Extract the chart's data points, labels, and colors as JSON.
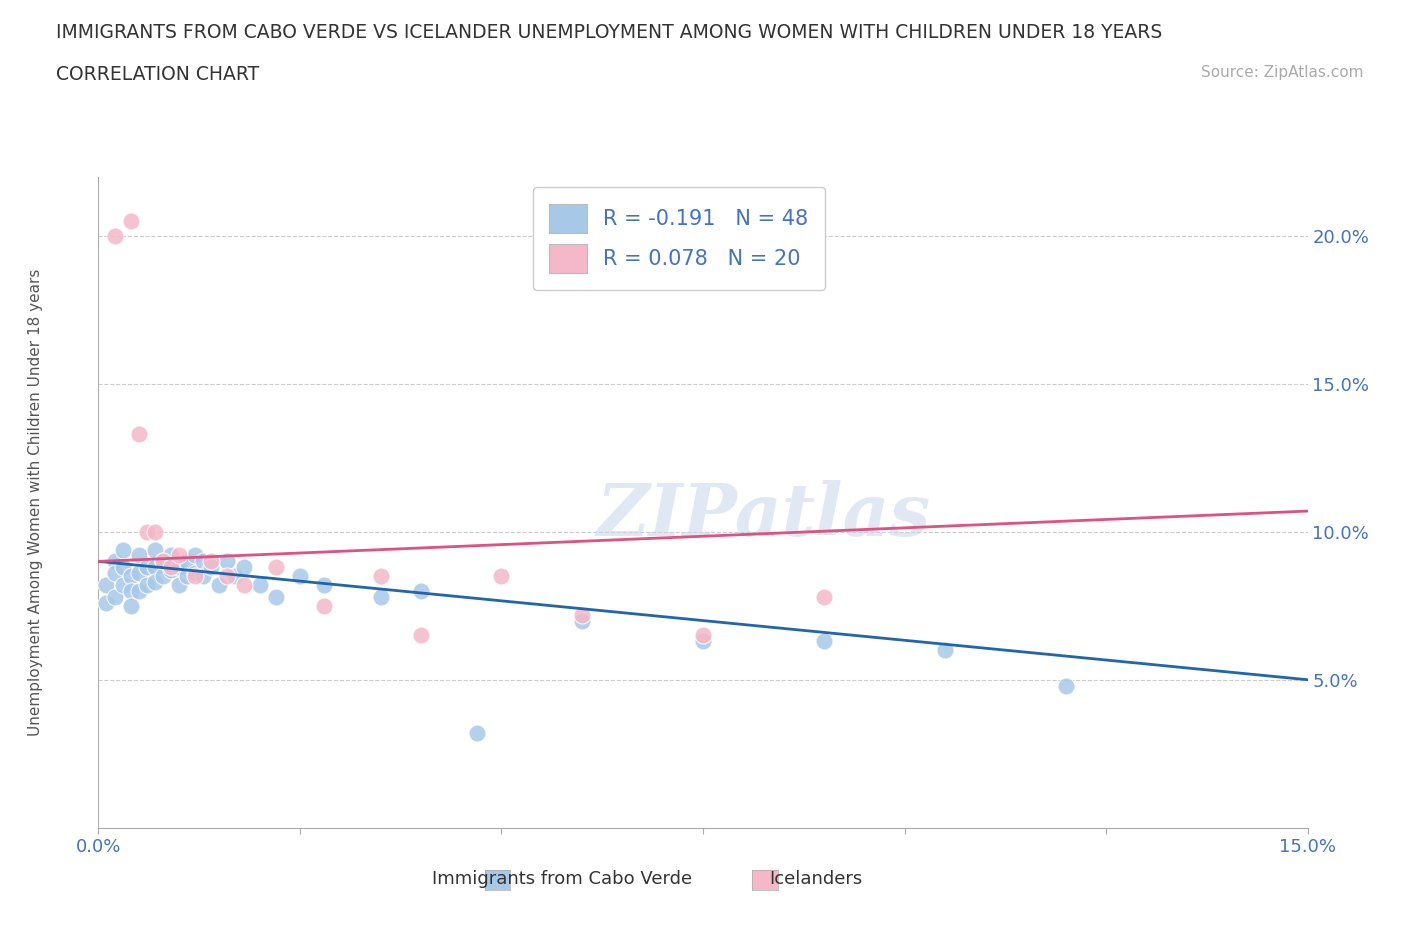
{
  "title": "IMMIGRANTS FROM CABO VERDE VS ICELANDER UNEMPLOYMENT AMONG WOMEN WITH CHILDREN UNDER 18 YEARS",
  "subtitle": "CORRELATION CHART",
  "source": "Source: ZipAtlas.com",
  "ylabel": "Unemployment Among Women with Children Under 18 years",
  "xlim": [
    0.0,
    0.15
  ],
  "ylim": [
    0.0,
    0.22
  ],
  "blue_scatter_x": [
    0.001,
    0.001,
    0.002,
    0.002,
    0.002,
    0.003,
    0.003,
    0.003,
    0.004,
    0.004,
    0.004,
    0.005,
    0.005,
    0.005,
    0.006,
    0.006,
    0.007,
    0.007,
    0.007,
    0.008,
    0.008,
    0.009,
    0.009,
    0.01,
    0.01,
    0.011,
    0.011,
    0.012,
    0.012,
    0.013,
    0.013,
    0.014,
    0.015,
    0.016,
    0.017,
    0.018,
    0.02,
    0.022,
    0.025,
    0.028,
    0.035,
    0.04,
    0.047,
    0.06,
    0.075,
    0.09,
    0.105,
    0.12
  ],
  "blue_scatter_y": [
    0.082,
    0.076,
    0.09,
    0.086,
    0.078,
    0.094,
    0.088,
    0.082,
    0.085,
    0.08,
    0.075,
    0.092,
    0.086,
    0.08,
    0.088,
    0.082,
    0.094,
    0.088,
    0.083,
    0.09,
    0.085,
    0.092,
    0.087,
    0.088,
    0.082,
    0.09,
    0.085,
    0.092,
    0.086,
    0.09,
    0.085,
    0.088,
    0.082,
    0.09,
    0.085,
    0.088,
    0.082,
    0.078,
    0.085,
    0.082,
    0.078,
    0.08,
    0.032,
    0.07,
    0.063,
    0.063,
    0.06,
    0.048
  ],
  "pink_scatter_x": [
    0.002,
    0.004,
    0.005,
    0.006,
    0.007,
    0.008,
    0.009,
    0.01,
    0.012,
    0.014,
    0.016,
    0.018,
    0.022,
    0.028,
    0.035,
    0.04,
    0.05,
    0.06,
    0.075,
    0.09
  ],
  "pink_scatter_y": [
    0.2,
    0.205,
    0.133,
    0.1,
    0.1,
    0.09,
    0.088,
    0.092,
    0.085,
    0.09,
    0.085,
    0.082,
    0.088,
    0.075,
    0.085,
    0.065,
    0.085,
    0.072,
    0.065,
    0.078
  ],
  "blue_line_x": [
    0.0,
    0.15
  ],
  "blue_line_y": [
    0.09,
    0.05
  ],
  "pink_line_x": [
    0.0,
    0.15
  ],
  "pink_line_y": [
    0.09,
    0.107
  ],
  "blue_color": "#a8c8e8",
  "pink_color": "#f4b8c8",
  "blue_line_color": "#2166ac",
  "pink_line_color": "#e05080",
  "legend_R1": "R = -0.191",
  "legend_N1": "N = 48",
  "legend_R2": "R = 0.078",
  "legend_N2": "N = 20",
  "legend_label1": "Immigrants from Cabo Verde",
  "legend_label2": "Icelanders",
  "watermark": "ZIPatlas",
  "background_color": "#ffffff",
  "grid_color": "#cccccc"
}
